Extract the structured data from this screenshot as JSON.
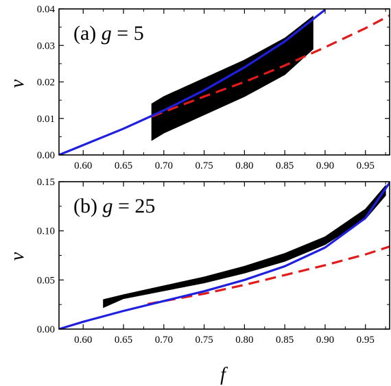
{
  "chart_data": [
    {
      "type": "line",
      "panel_label": "(a) ",
      "panel_var": "g",
      "panel_eq": " = 5",
      "xlabel": "",
      "ylabel": "ν",
      "xlim": [
        0.57,
        0.98
      ],
      "ylim": [
        0.0,
        0.04
      ],
      "xticks": [
        0.6,
        0.65,
        0.7,
        0.75,
        0.8,
        0.85,
        0.9,
        0.95
      ],
      "xtick_labels": [
        "0.60",
        "0.65",
        "0.70",
        "0.75",
        "0.80",
        "0.85",
        "0.90",
        "0.95"
      ],
      "yticks": [
        0.0,
        0.01,
        0.02,
        0.03,
        0.04
      ],
      "ytick_labels": [
        "0.00",
        "0.01",
        "0.02",
        "0.03",
        "0.04"
      ],
      "grid": false,
      "colors": {
        "band": "#000000",
        "solid": "#1f1fe0",
        "dashed": "#e31a1a"
      },
      "band": {
        "x": [
          0.685,
          0.7,
          0.75,
          0.8,
          0.85,
          0.885
        ],
        "lower": [
          0.004,
          0.006,
          0.011,
          0.016,
          0.022,
          0.029
        ],
        "upper": [
          0.014,
          0.016,
          0.021,
          0.026,
          0.032,
          0.038
        ]
      },
      "solid": {
        "x": [
          0.57,
          0.6,
          0.65,
          0.7,
          0.75,
          0.8,
          0.85,
          0.9
        ],
        "y": [
          0.0,
          0.0027,
          0.0072,
          0.0122,
          0.0177,
          0.024,
          0.0311,
          0.0398
        ]
      },
      "dashed": {
        "x": [
          0.685,
          0.7,
          0.75,
          0.8,
          0.85,
          0.9,
          0.95,
          0.98
        ],
        "y": [
          0.0105,
          0.0118,
          0.016,
          0.02,
          0.0245,
          0.0295,
          0.0347,
          0.0382
        ]
      }
    },
    {
      "type": "line",
      "panel_label": "(b) ",
      "panel_var": "g",
      "panel_eq": " = 25",
      "xlabel": "f",
      "ylabel": "ν",
      "xlim": [
        0.57,
        0.98
      ],
      "ylim": [
        0.0,
        0.15
      ],
      "xticks": [
        0.6,
        0.65,
        0.7,
        0.75,
        0.8,
        0.85,
        0.9,
        0.95
      ],
      "xtick_labels": [
        "0.60",
        "0.65",
        "0.70",
        "0.75",
        "0.80",
        "0.85",
        "0.90",
        "0.95"
      ],
      "yticks": [
        0.0,
        0.05,
        0.1,
        0.15
      ],
      "ytick_labels": [
        "0.00",
        "0.05",
        "0.10",
        "0.15"
      ],
      "grid": false,
      "colors": {
        "band": "#000000",
        "solid": "#1f1fe0",
        "dashed": "#e31a1a"
      },
      "band": {
        "x": [
          0.625,
          0.65,
          0.7,
          0.75,
          0.8,
          0.85,
          0.9,
          0.95,
          0.975
        ],
        "lower": [
          0.022,
          0.031,
          0.039,
          0.047,
          0.057,
          0.069,
          0.086,
          0.112,
          0.136
        ],
        "upper": [
          0.03,
          0.035,
          0.044,
          0.053,
          0.064,
          0.077,
          0.094,
          0.122,
          0.146
        ]
      },
      "solid": {
        "x": [
          0.57,
          0.6,
          0.65,
          0.7,
          0.75,
          0.8,
          0.85,
          0.9,
          0.95,
          0.98
        ],
        "y": [
          0.0,
          0.0075,
          0.0185,
          0.0285,
          0.0385,
          0.05,
          0.064,
          0.083,
          0.113,
          0.149
        ]
      },
      "dashed": {
        "x": [
          0.68,
          0.7,
          0.75,
          0.8,
          0.85,
          0.9,
          0.95,
          0.98
        ],
        "y": [
          0.0255,
          0.0285,
          0.036,
          0.045,
          0.055,
          0.065,
          0.076,
          0.084
        ]
      }
    }
  ]
}
